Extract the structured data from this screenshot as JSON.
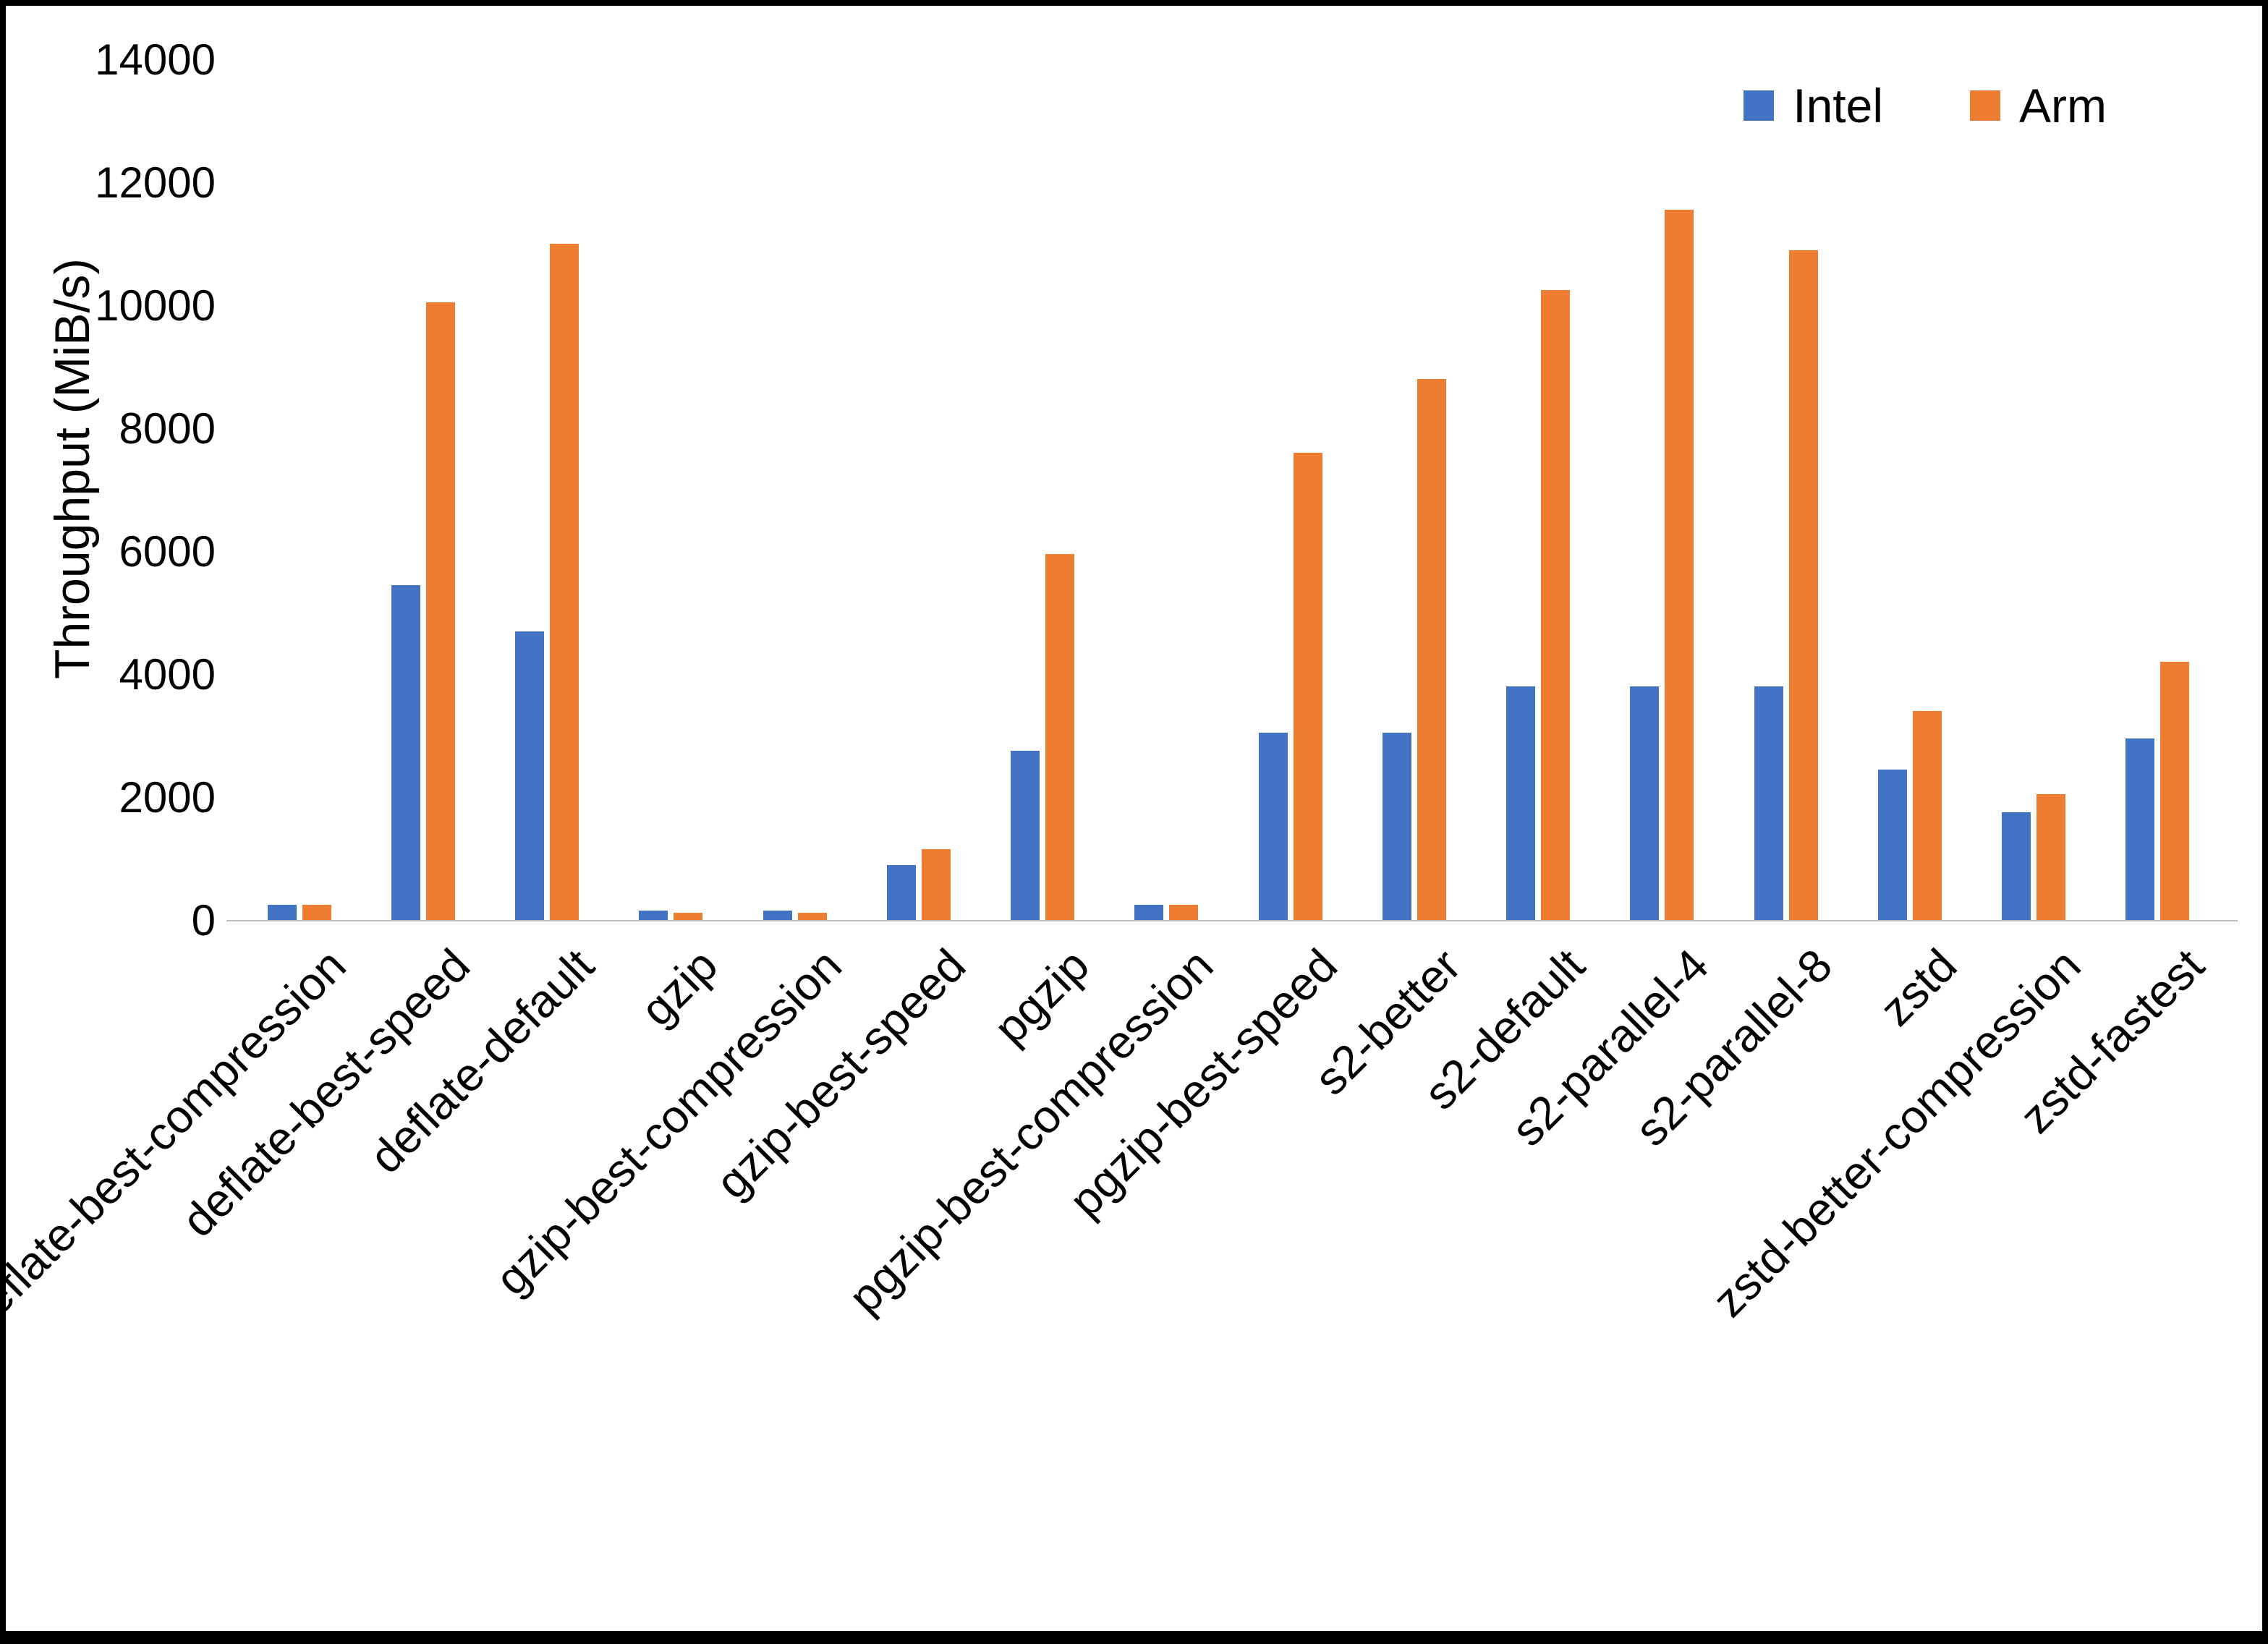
{
  "chart_data": {
    "type": "bar",
    "title": "",
    "xlabel": "",
    "ylabel": "Throughput (MiB/s)",
    "ylim": [
      0,
      14000
    ],
    "ytick_step": 2000,
    "yticks": [
      "0",
      "2000",
      "4000",
      "6000",
      "8000",
      "10000",
      "12000",
      "14000"
    ],
    "grid": false,
    "legend_position": "top-right",
    "categories": [
      "deflate-best-compression",
      "deflate-best-speed",
      "deflate-default",
      "gzip",
      "gzip-best-compression",
      "gzip-best-speed",
      "pgzip",
      "pgzip-best-compression",
      "pgzip-best-speed",
      "s2-better",
      "s2-default",
      "s2-parallel-4",
      "s2-parallel-8",
      "zstd",
      "zstd-better-compression",
      "zstd-fastest"
    ],
    "series": [
      {
        "name": "Intel",
        "color": "#4472C4",
        "values": [
          250,
          5450,
          4700,
          150,
          150,
          900,
          2750,
          250,
          3050,
          3050,
          3800,
          3800,
          3800,
          2450,
          1750,
          2950
        ]
      },
      {
        "name": "Arm",
        "color": "#ED7D31",
        "values": [
          250,
          10050,
          11000,
          120,
          120,
          1150,
          5950,
          250,
          7600,
          8800,
          10250,
          11550,
          10900,
          3400,
          2050,
          4200
        ]
      }
    ]
  },
  "colors": {
    "intel": "#4472C4",
    "arm": "#ED7D31",
    "axis_line": "#BFBFBF",
    "text": "#000000",
    "background": "#FFFFFF",
    "border": "#000000"
  }
}
